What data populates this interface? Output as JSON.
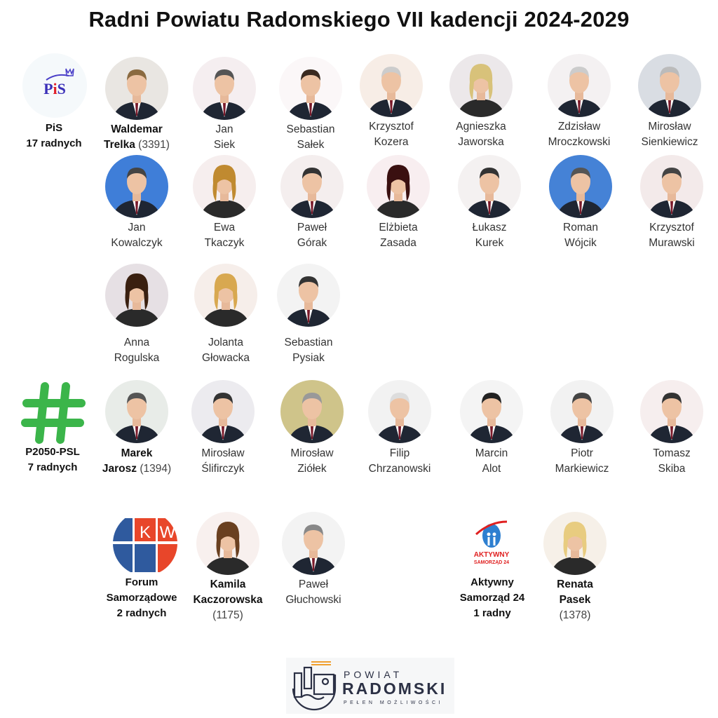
{
  "title": "Radni Powiatu Radomskiego VII kadencji 2024-2029",
  "parties": [
    {
      "line1": "PiS",
      "line2": "17 radnych",
      "logo_text": "PiS",
      "logo_icon": "pis-logo"
    },
    {
      "line1": "P2050-PSL",
      "line2": "7 radnych",
      "logo_icon": "hash-icon",
      "color": "#3bb54a"
    },
    {
      "line1": "Forum",
      "line2": "Samorządowe",
      "line3": "2 radnych",
      "logo_text": "KW",
      "logo_icon": "kw-logo"
    },
    {
      "line1": "Aktywny",
      "line2": "Samorząd 24",
      "line3": "1 radny",
      "logo_text": "AKTYWNY SAMORZĄD 24",
      "logo_icon": "aktywny-samorzad-logo"
    }
  ],
  "councillors": [
    {
      "first": "Waldemar",
      "last": "Trelka",
      "votes": "(3391)",
      "leader": true
    },
    {
      "first": "Jan",
      "last": "Siek"
    },
    {
      "first": "Sebastian",
      "last": "Sałek"
    },
    {
      "first": "Krzysztof",
      "last": "Kozera"
    },
    {
      "first": "Agnieszka",
      "last": "Jaworska"
    },
    {
      "first": "Zdzisław",
      "last": "Mroczkowski"
    },
    {
      "first": "Mirosław",
      "last": "Sienkiewicz"
    },
    {
      "first": "Jan",
      "last": "Kowalczyk"
    },
    {
      "first": "Ewa",
      "last": "Tkaczyk"
    },
    {
      "first": "Paweł",
      "last": "Górak"
    },
    {
      "first": "Elżbieta",
      "last": "Zasada"
    },
    {
      "first": "Łukasz",
      "last": "Kurek"
    },
    {
      "first": "Roman",
      "last": "Wójcik"
    },
    {
      "first": "Krzysztof",
      "last": "Murawski"
    },
    {
      "first": "Anna",
      "last": "Rogulska"
    },
    {
      "first": "Jolanta",
      "last": "Głowacka"
    },
    {
      "first": "Sebastian",
      "last": "Pysiak"
    },
    {
      "first": "Marek",
      "last": "Jarosz",
      "votes": "(1394)",
      "leader": true
    },
    {
      "first": "Mirosław",
      "last": "Ślifirczyk"
    },
    {
      "first": "Mirosław",
      "last": "Ziółek"
    },
    {
      "first": "Filip",
      "last": "Chrzanowski"
    },
    {
      "first": "Marcin",
      "last": "Alot"
    },
    {
      "first": "Piotr",
      "last": "Markiewicz"
    },
    {
      "first": "Tomasz",
      "last": "Skiba"
    },
    {
      "first": "Kamila",
      "last": "Kaczorowska",
      "votes": "(1175)",
      "leader": true
    },
    {
      "first": "Paweł",
      "last": "Głuchowski"
    },
    {
      "first": "Renata",
      "last": "Pasek",
      "votes": "(1378)",
      "leader": true
    }
  ],
  "footer": {
    "line1": "POWIAT",
    "line2": "RADOMSKI",
    "line3": "PEŁEN MOŻLIWOŚCI",
    "accent": "#f0a030",
    "color": "#2c3145"
  }
}
